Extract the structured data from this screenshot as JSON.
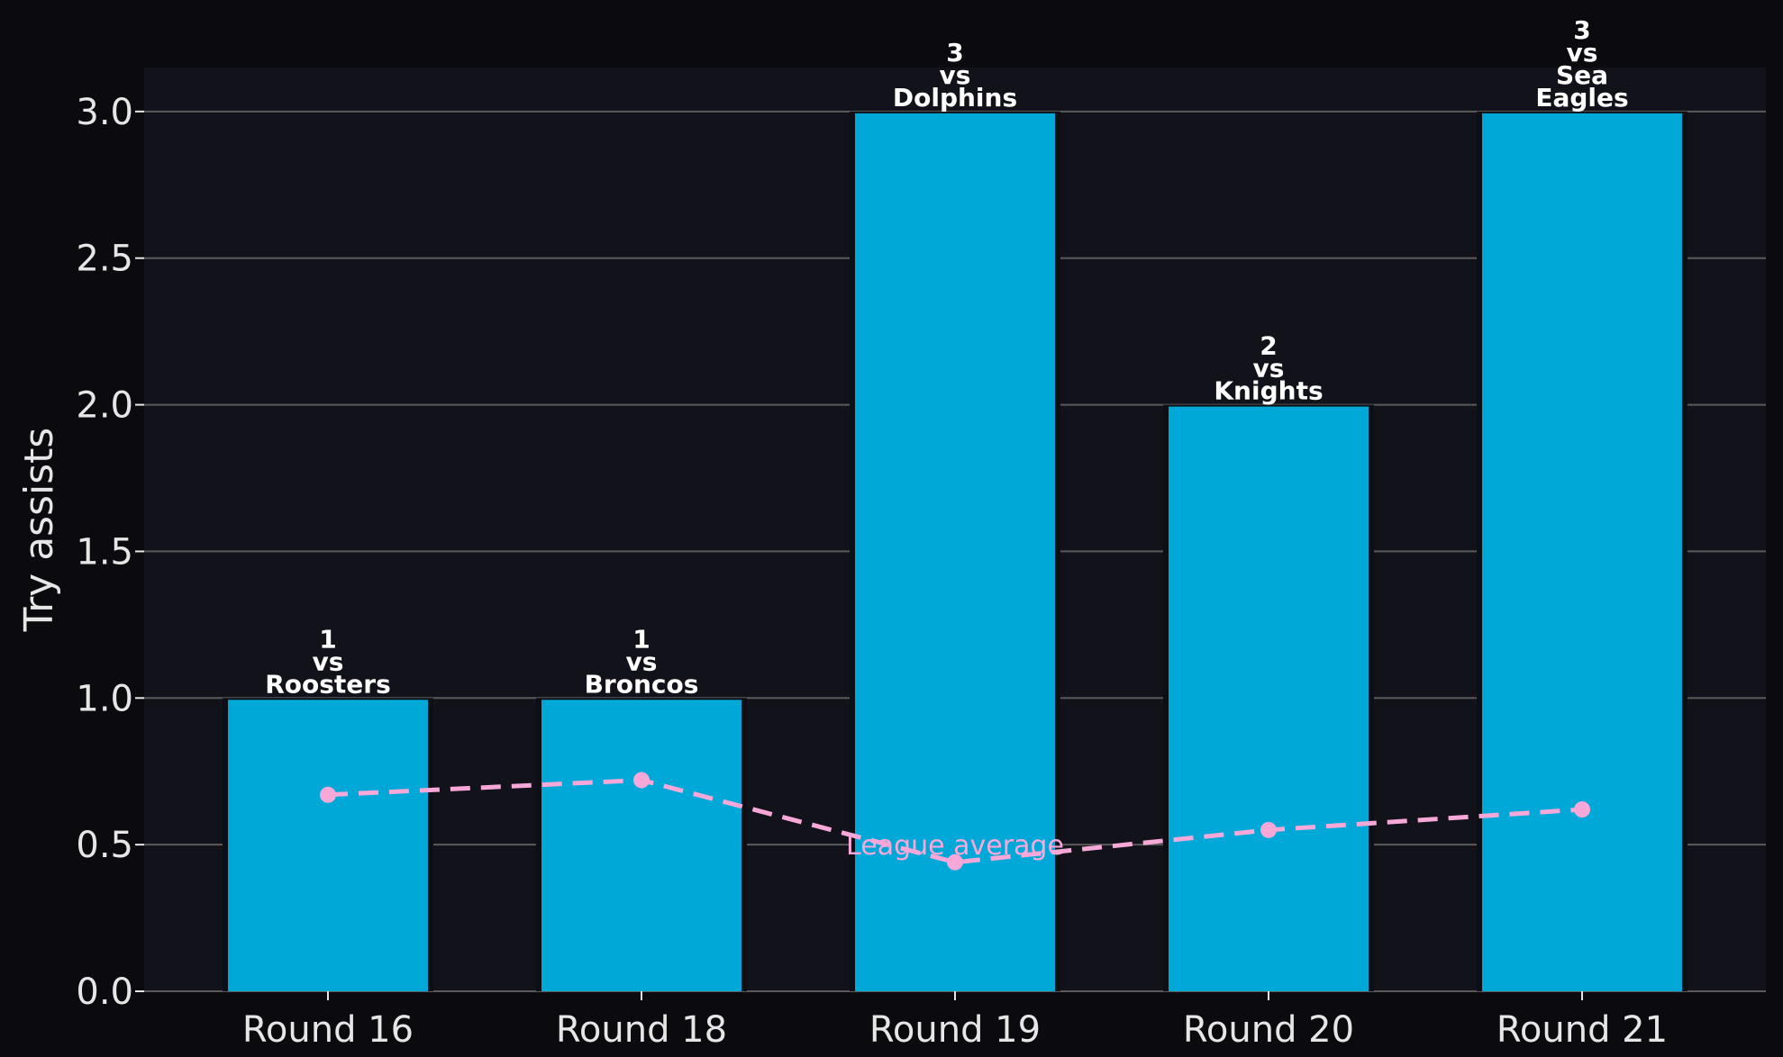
{
  "chart_data": {
    "type": "bar",
    "categories": [
      "Round 16",
      "Round 18",
      "Round 19",
      "Round 20",
      "Round 21"
    ],
    "series": [
      {
        "values": [
          1,
          1,
          3,
          2,
          3
        ],
        "color": "#00a8d8"
      },
      {
        "name": "League average",
        "type": "line",
        "values": [
          0.67,
          0.72,
          0.44,
          0.55,
          0.62
        ],
        "color": "#f7a8d8",
        "line_style": "dashed"
      }
    ],
    "bar_labels": [
      [
        "1",
        "vs",
        "Roosters"
      ],
      [
        "1",
        "vs",
        "Broncos"
      ],
      [
        "3",
        "vs",
        "Dolphins"
      ],
      [
        "2",
        "vs",
        "Knights"
      ],
      [
        "3",
        "vs",
        "Sea",
        "Eagles"
      ]
    ],
    "average_label": "League average",
    "xlabel": "",
    "ylabel": "Try assists",
    "ylim": [
      0,
      3.15
    ],
    "yticks": [
      "0.0",
      "0.5",
      "1.0",
      "1.5",
      "2.0",
      "2.5",
      "3.0"
    ],
    "grid": "horizontal",
    "colors": {
      "figure_background": "#0b0b0f",
      "plot_background": "#12131a",
      "grid": "#5a5a5a",
      "text": "#e6e6e6"
    }
  }
}
